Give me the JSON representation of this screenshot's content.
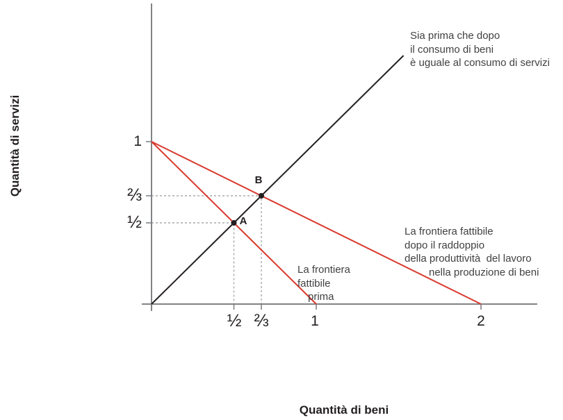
{
  "axes": {
    "x_title": "Quantità di beni",
    "y_title": "Quantità di servizi"
  },
  "colors": {
    "frontier_red": "#d9392e",
    "equality_black": "#231f20",
    "axis_gray": "#808285",
    "guide_gray": "#a7a9ac",
    "text_gray": "#414042"
  },
  "annotations": {
    "equality": {
      "lines": [
        "Sia prima che dopo",
        "il consumo di beni",
        "è uguale al consumo di servizi"
      ]
    },
    "frontier_after": {
      "lines": [
        "La frontiera fattibile",
        "dopo il raddoppio",
        "della produttività  del lavoro",
        "nella produzione di beni"
      ]
    },
    "frontier_before": {
      "lines": [
        "La frontiera",
        "fattibile",
        "prima"
      ]
    }
  },
  "chart_data": {
    "type": "line",
    "title": "",
    "xlabel": "Quantità di beni",
    "ylabel": "Quantità di servizi",
    "xlim": [
      0,
      2.35
    ],
    "ylim": [
      0,
      1.85
    ],
    "grid": false,
    "legend": "none, labels annotated inline",
    "x_ticks": [
      {
        "value": 0.5,
        "label": "½"
      },
      {
        "value": 0.6667,
        "label": "⅔"
      },
      {
        "value": 1,
        "label": "1"
      },
      {
        "value": 2,
        "label": "2"
      }
    ],
    "y_ticks": [
      {
        "value": 1,
        "label": "1"
      },
      {
        "value": 0.6667,
        "label": "⅔"
      },
      {
        "value": 0.5,
        "label": "½"
      }
    ],
    "series": [
      {
        "id": "equality",
        "name": "Sia prima che dopo il consumo di beni è uguale al consumo di servizi",
        "color": "#231f20",
        "points": [
          [
            0,
            0
          ],
          [
            1.53,
            1.53
          ]
        ]
      },
      {
        "id": "frontier-before",
        "name": "La frontiera fattibile prima",
        "color": "#d9392e",
        "points": [
          [
            0,
            1
          ],
          [
            1,
            0
          ]
        ]
      },
      {
        "id": "frontier-after",
        "name": "La frontiera fattibile dopo il raddoppio della produttività del lavoro nella produzione di beni",
        "color": "#d9392e",
        "points": [
          [
            0,
            1
          ],
          [
            2,
            0
          ]
        ]
      }
    ],
    "points": [
      {
        "id": "A",
        "label": "A",
        "x": 0.5,
        "y": 0.5
      },
      {
        "id": "B",
        "label": "B",
        "x": 0.6667,
        "y": 0.6667
      }
    ]
  }
}
